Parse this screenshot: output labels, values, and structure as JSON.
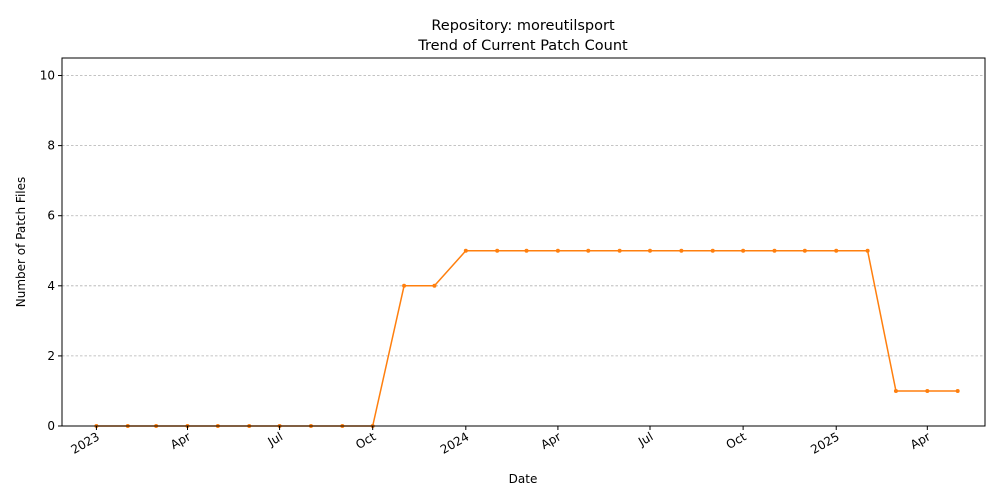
{
  "chart_data": {
    "type": "line",
    "title_line1": "Repository: moreutilsport",
    "title_line2": "Trend of Current Patch Count",
    "xlabel": "Date",
    "ylabel": "Number of Patch Files",
    "ylim": [
      0,
      10.5
    ],
    "yticks": [
      0,
      2,
      4,
      6,
      8,
      10
    ],
    "xlim": [
      "2022-11-28",
      "2025-05-28"
    ],
    "xticks": [
      {
        "date": "2023-01-01",
        "label": "2023"
      },
      {
        "date": "2023-04-01",
        "label": "Apr"
      },
      {
        "date": "2023-07-01",
        "label": "Jul"
      },
      {
        "date": "2023-10-01",
        "label": "Oct"
      },
      {
        "date": "2024-01-01",
        "label": "2024"
      },
      {
        "date": "2024-04-01",
        "label": "Apr"
      },
      {
        "date": "2024-07-01",
        "label": "Jul"
      },
      {
        "date": "2024-10-01",
        "label": "Oct"
      },
      {
        "date": "2025-01-01",
        "label": "2025"
      },
      {
        "date": "2025-04-01",
        "label": "Apr"
      }
    ],
    "grid": "y-dashed",
    "line_color": "#ff7f0e",
    "series": [
      {
        "x": [
          "2023-01-01",
          "2023-02-01",
          "2023-03-01",
          "2023-04-01",
          "2023-05-01",
          "2023-06-01",
          "2023-07-01",
          "2023-08-01",
          "2023-09-01",
          "2023-10-01",
          "2023-11-01",
          "2023-12-01",
          "2024-01-01",
          "2024-02-01",
          "2024-03-01",
          "2024-04-01",
          "2024-05-01",
          "2024-06-01",
          "2024-07-01",
          "2024-08-01",
          "2024-09-01",
          "2024-10-01",
          "2024-11-01",
          "2024-12-01",
          "2025-01-01",
          "2025-02-01",
          "2025-03-01",
          "2025-04-01",
          "2025-05-01"
        ],
        "values": [
          0,
          0,
          0,
          0,
          0,
          0,
          0,
          0,
          0,
          0,
          4,
          4,
          5,
          5,
          5,
          5,
          5,
          5,
          5,
          5,
          5,
          5,
          5,
          5,
          5,
          5,
          1,
          1,
          1
        ]
      }
    ]
  }
}
